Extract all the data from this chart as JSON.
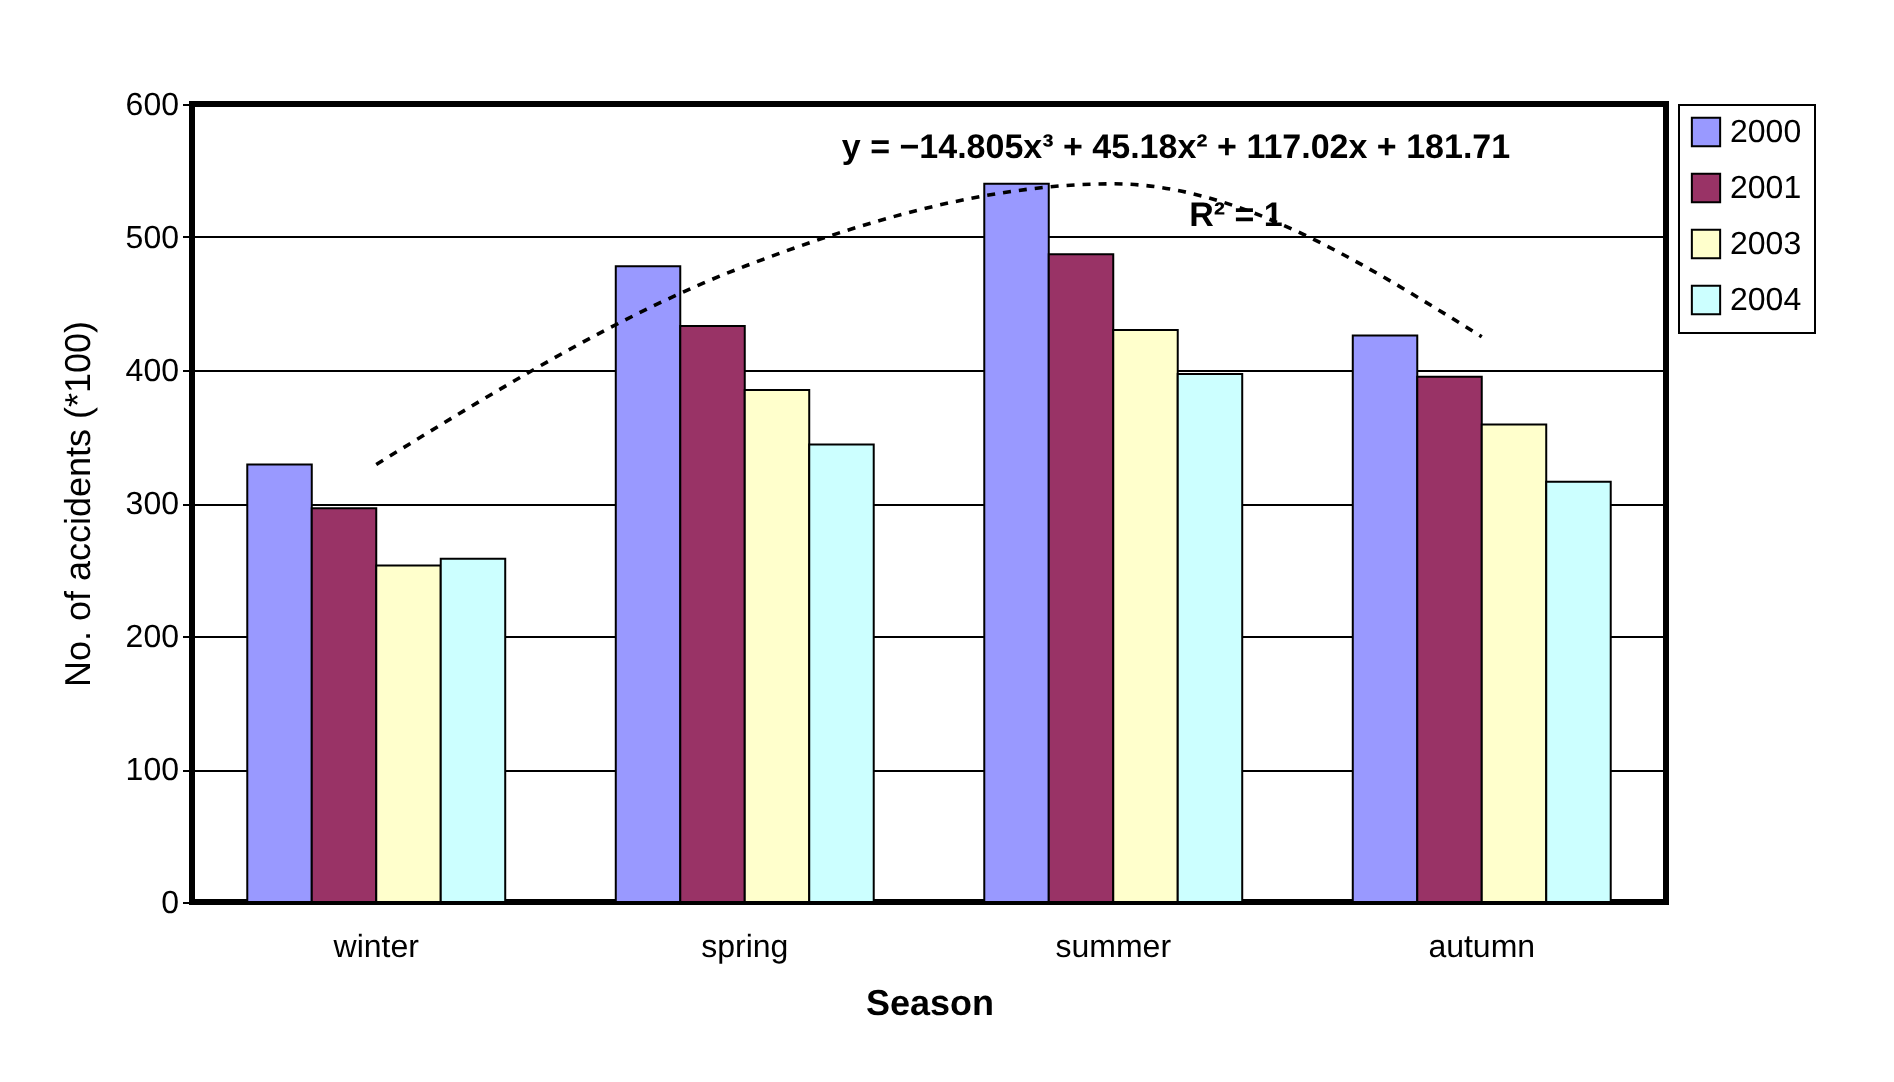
{
  "chart_data": {
    "type": "bar",
    "xlabel": "Season",
    "ylabel": "No. of accidents (*100)",
    "categories": [
      "winter",
      "spring",
      "summer",
      "autumn"
    ],
    "series": [
      {
        "name": "2000",
        "color": "#9999ff",
        "values": [
          329,
          478,
          540,
          426
        ]
      },
      {
        "name": "2001",
        "color": "#993366",
        "values": [
          296,
          433,
          487,
          395
        ]
      },
      {
        "name": "2003",
        "color": "#ffffcc",
        "values": [
          253,
          385,
          430,
          359
        ]
      },
      {
        "name": "2004",
        "color": "#ccffff",
        "values": [
          258,
          344,
          397,
          316
        ]
      },
      {
        "type": "line",
        "color": "#000000",
        "line_style": "dashed",
        "values": [
          329,
          478,
          540,
          425
        ]
      }
    ],
    "ylim": [
      0,
      600
    ],
    "yticks": [
      0,
      100,
      200,
      300,
      400,
      500,
      600
    ],
    "grid": "y",
    "legend": "right",
    "annotations": [
      "y = −14.805x³ + 45.18x² + 117.02x + 181.71",
      "R² = 1"
    ]
  }
}
